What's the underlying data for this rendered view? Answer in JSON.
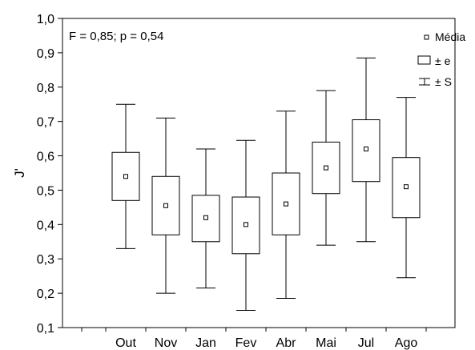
{
  "chart_data": {
    "type": "boxplot",
    "annotation": "F = 0,85; p = 0,54",
    "ylabel": "J'",
    "xlabel": "",
    "ylim": [
      0.1,
      1.0
    ],
    "yticks": [
      0.1,
      0.2,
      0.3,
      0.4,
      0.5,
      0.6,
      0.7,
      0.8,
      0.9,
      1.0
    ],
    "ytick_labels": [
      "0,1",
      "0,2",
      "0,3",
      "0,4",
      "0,5",
      "0,6",
      "0,7",
      "0,8",
      "0,9",
      "1,0"
    ],
    "categories": [
      "Out",
      "Nov",
      "Jan",
      "Fev",
      "Abr",
      "Mai",
      "Jul",
      "Ago"
    ],
    "series": [
      {
        "category": "Out",
        "mean": 0.54,
        "se_low": 0.47,
        "se_high": 0.61,
        "sd_low": 0.33,
        "sd_high": 0.75
      },
      {
        "category": "Nov",
        "mean": 0.455,
        "se_low": 0.37,
        "se_high": 0.54,
        "sd_low": 0.2,
        "sd_high": 0.71
      },
      {
        "category": "Jan",
        "mean": 0.42,
        "se_low": 0.35,
        "se_high": 0.485,
        "sd_low": 0.215,
        "sd_high": 0.62
      },
      {
        "category": "Fev",
        "mean": 0.4,
        "se_low": 0.315,
        "se_high": 0.48,
        "sd_low": 0.15,
        "sd_high": 0.645
      },
      {
        "category": "Abr",
        "mean": 0.46,
        "se_low": 0.37,
        "se_high": 0.55,
        "sd_low": 0.185,
        "sd_high": 0.73
      },
      {
        "category": "Mai",
        "mean": 0.565,
        "se_low": 0.49,
        "se_high": 0.64,
        "sd_low": 0.34,
        "sd_high": 0.79
      },
      {
        "category": "Jul",
        "mean": 0.62,
        "se_low": 0.525,
        "se_high": 0.705,
        "sd_low": 0.35,
        "sd_high": 0.885
      },
      {
        "category": "Ago",
        "mean": 0.51,
        "se_low": 0.42,
        "se_high": 0.595,
        "sd_low": 0.245,
        "sd_high": 0.77
      }
    ],
    "legend": {
      "placement": "top-right",
      "items": [
        {
          "symbol": "mean-square",
          "label": "Média"
        },
        {
          "symbol": "box",
          "label": "± e"
        },
        {
          "symbol": "whisker",
          "label": "± S"
        }
      ]
    },
    "grid": false
  }
}
